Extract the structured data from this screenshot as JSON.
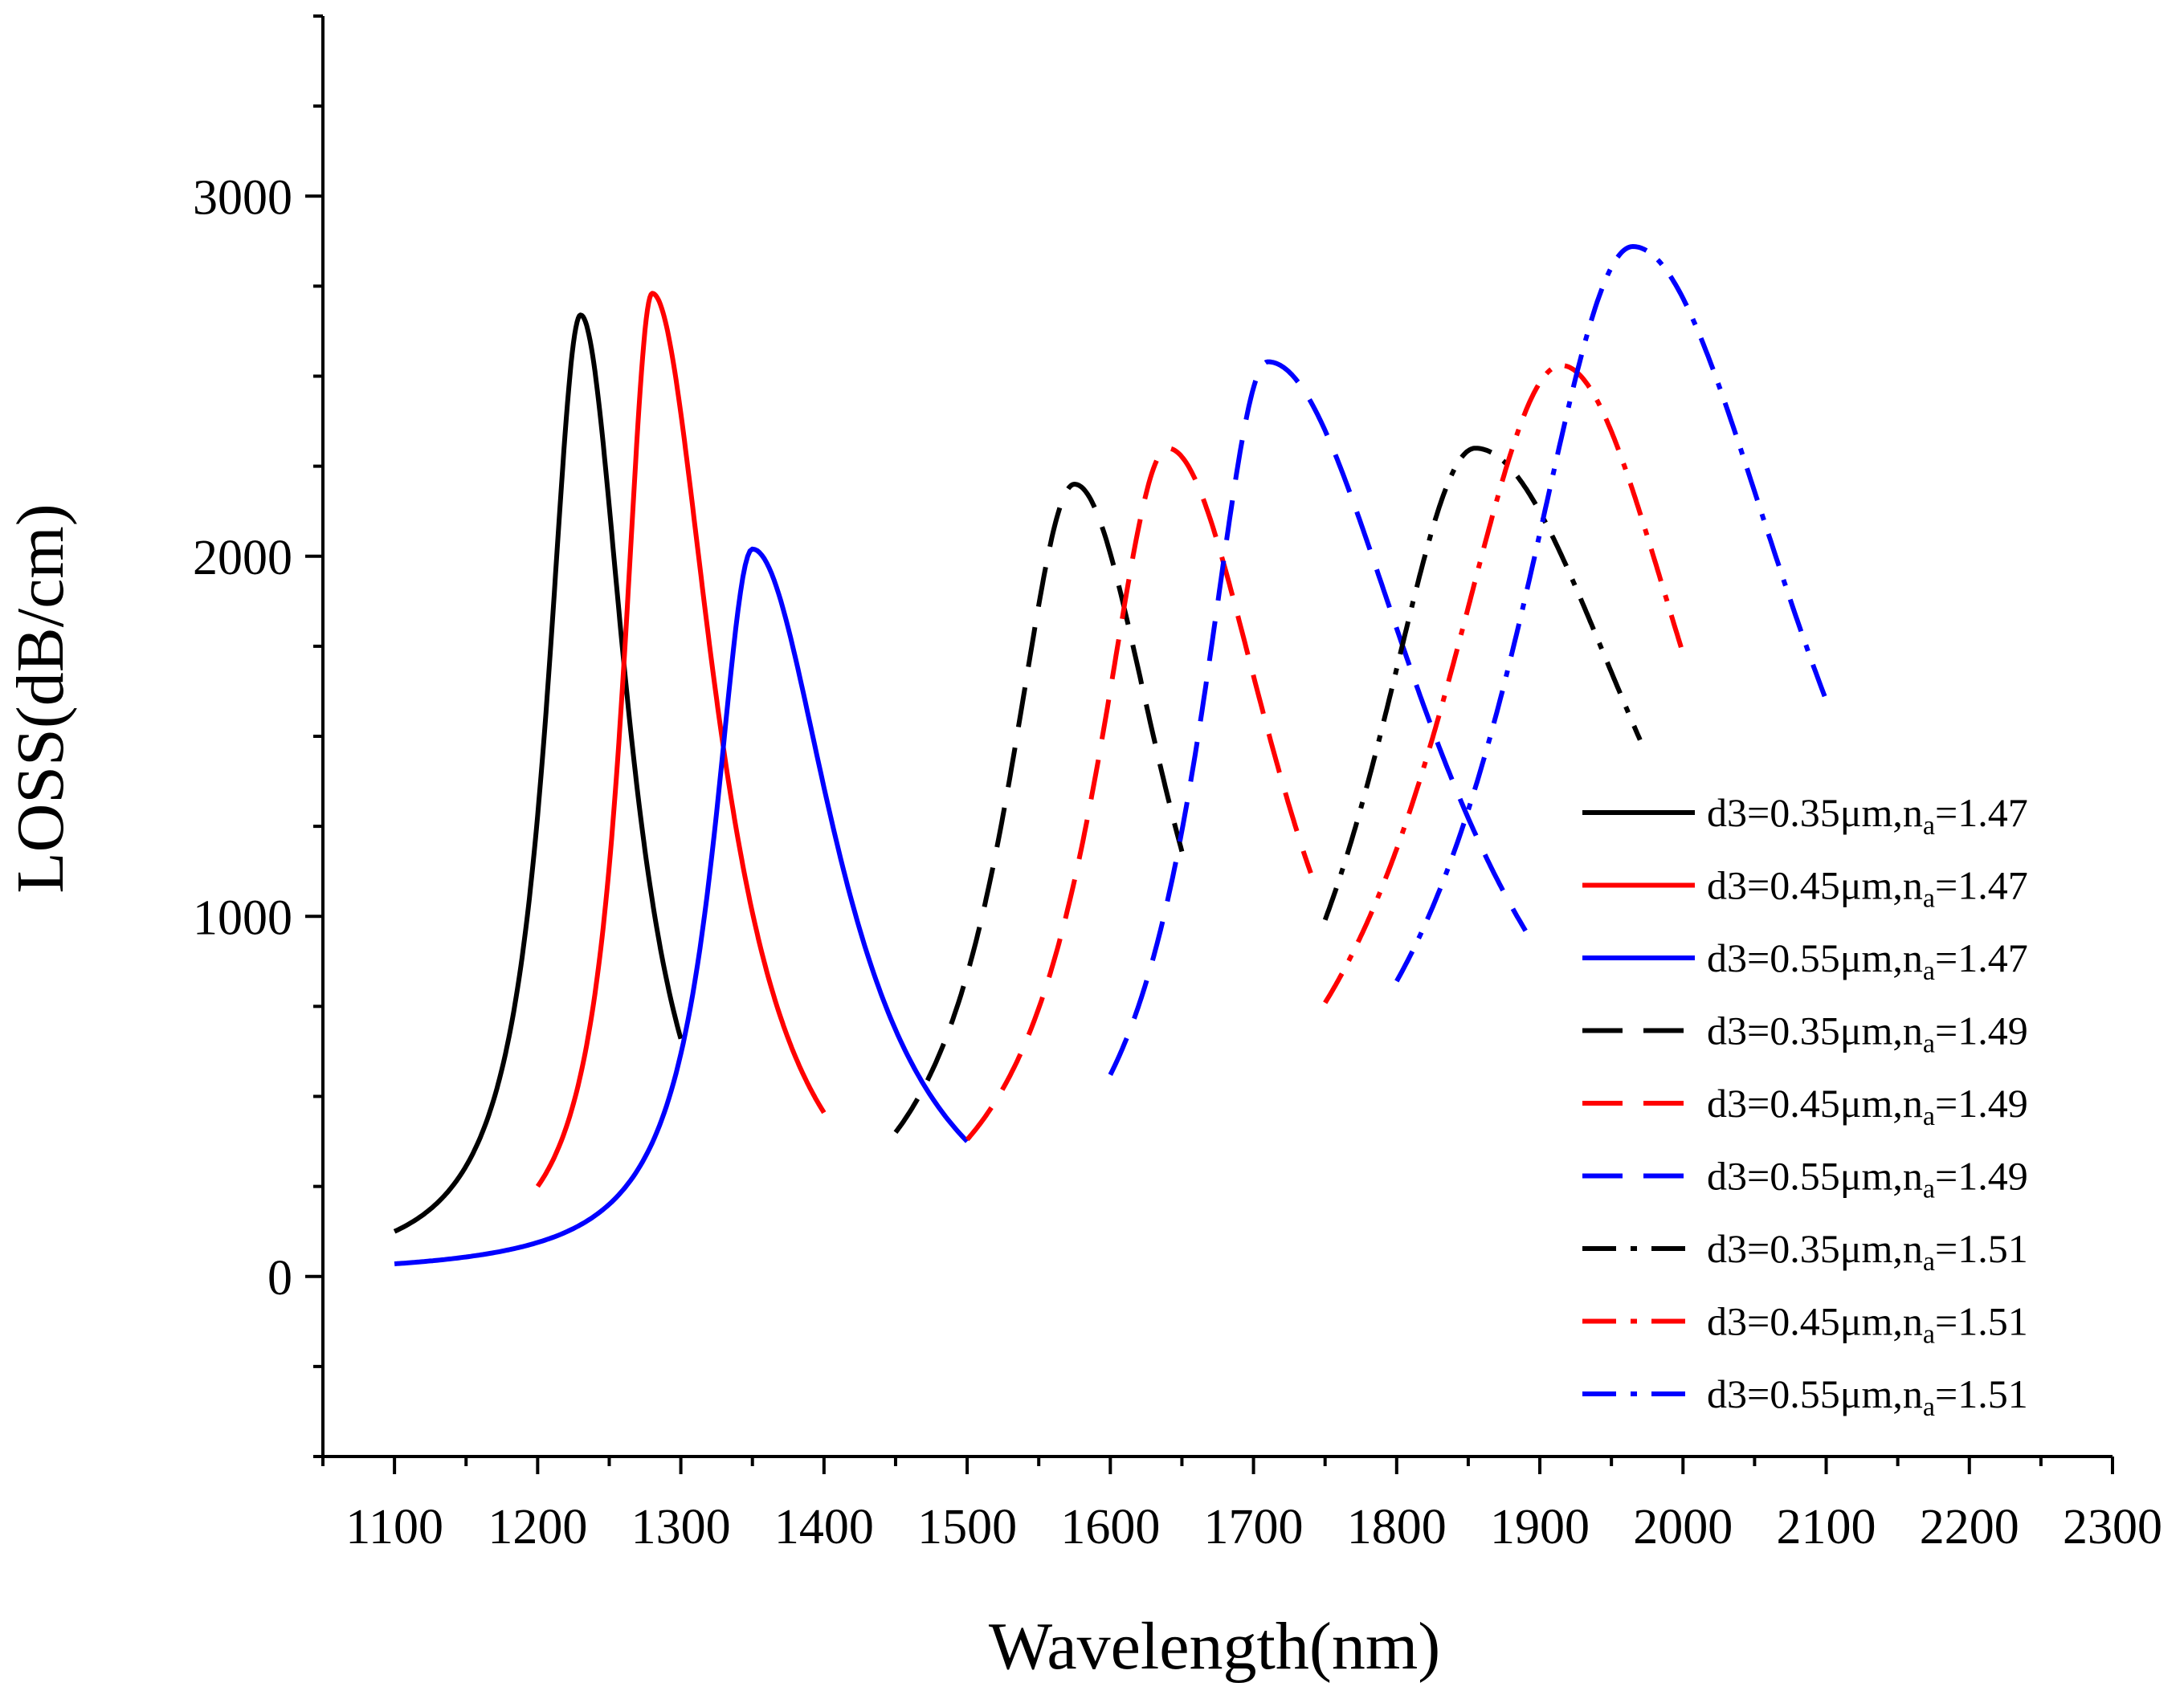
{
  "chart_data": {
    "type": "line",
    "title": "",
    "xlabel": "Wavelength(nm)",
    "ylabel": "LOSS(dB/cm)",
    "xlim": [
      1050,
      2300
    ],
    "ylim": [
      -500,
      3500
    ],
    "xticks": [
      1100,
      1200,
      1300,
      1400,
      1500,
      1600,
      1700,
      1800,
      1900,
      2000,
      2100,
      2200,
      2300
    ],
    "xtick_labels": [
      "1100",
      "1200",
      "1300",
      "1400",
      "1500",
      "1600",
      "1700",
      "1800",
      "1900",
      "2000",
      "2100",
      "2200",
      "2300"
    ],
    "yticks": [
      0,
      1000,
      2000,
      3000
    ],
    "ytick_labels": [
      "0",
      "1000",
      "2000",
      "3000"
    ],
    "legend_position": "right",
    "series": [
      {
        "name": "d3=0.35μm,n_a=1.47",
        "label_main": "d3=0.35μm,n",
        "label_sub": "a",
        "label_tail": "=1.47",
        "color": "#000000",
        "dash": "solid",
        "x_range": [
          1100,
          1300
        ],
        "peak_x": 1230,
        "peak_y": 2670,
        "left_y": 125,
        "right_y": 660
      },
      {
        "name": "d3=0.45μm,n_a=1.47",
        "label_main": "d3=0.45μm,n",
        "label_sub": "a",
        "label_tail": "=1.47",
        "color": "#ff0000",
        "dash": "solid",
        "x_range": [
          1200,
          1400
        ],
        "peak_x": 1280,
        "peak_y": 2730,
        "left_y": 250,
        "right_y": 455
      },
      {
        "name": "d3=0.55μm,n_a=1.47",
        "label_main": "d3=0.55μm,n",
        "label_sub": "a",
        "label_tail": "=1.47",
        "color": "#0000ff",
        "dash": "solid",
        "x_range": [
          1100,
          1500
        ],
        "peak_x": 1350,
        "peak_y": 2020,
        "left_y": 35,
        "right_y": 375
      },
      {
        "name": "d3=0.35μm,n_a=1.49",
        "label_main": "d3=0.35μm,n",
        "label_sub": "a",
        "label_tail": "=1.49",
        "color": "#000000",
        "dash": "dash",
        "x_range": [
          1450,
          1650
        ],
        "peak_x": 1575,
        "peak_y": 2200,
        "left_y": 400,
        "right_y": 1180
      },
      {
        "name": "d3=0.45μm,n_a=1.49",
        "label_main": "d3=0.45μm,n",
        "label_sub": "a",
        "label_tail": "=1.49",
        "color": "#ff0000",
        "dash": "dash",
        "x_range": [
          1500,
          1740
        ],
        "peak_x": 1640,
        "peak_y": 2300,
        "left_y": 380,
        "right_y": 1120
      },
      {
        "name": "d3=0.55μm,n_a=1.49",
        "label_main": "d3=0.55μm,n",
        "label_sub": "a",
        "label_tail": "=1.49",
        "color": "#0000ff",
        "dash": "dash",
        "x_range": [
          1600,
          1890
        ],
        "peak_x": 1710,
        "peak_y": 2540,
        "left_y": 560,
        "right_y": 960
      },
      {
        "name": "d3=0.35μm,n_a=1.51",
        "label_main": "d3=0.35μm,n",
        "label_sub": "a",
        "label_tail": "=1.51",
        "color": "#000000",
        "dash": "dashdot",
        "x_range": [
          1750,
          1970
        ],
        "peak_x": 1855,
        "peak_y": 2300,
        "left_y": 990,
        "right_y": 1490
      },
      {
        "name": "d3=0.45μm,n_a=1.51",
        "label_main": "d3=0.45μm,n",
        "label_sub": "a",
        "label_tail": "=1.51",
        "color": "#ff0000",
        "dash": "dashdot",
        "x_range": [
          1750,
          2000
        ],
        "peak_x": 1915,
        "peak_y": 2530,
        "left_y": 760,
        "right_y": 1730
      },
      {
        "name": "d3=0.55μm,n_a=1.51",
        "label_main": "d3=0.55μm,n",
        "label_sub": "a",
        "label_tail": "=1.51",
        "color": "#0000ff",
        "dash": "dashdot",
        "x_range": [
          1800,
          2100
        ],
        "peak_x": 1965,
        "peak_y": 2860,
        "left_y": 820,
        "right_y": 1600
      }
    ]
  }
}
